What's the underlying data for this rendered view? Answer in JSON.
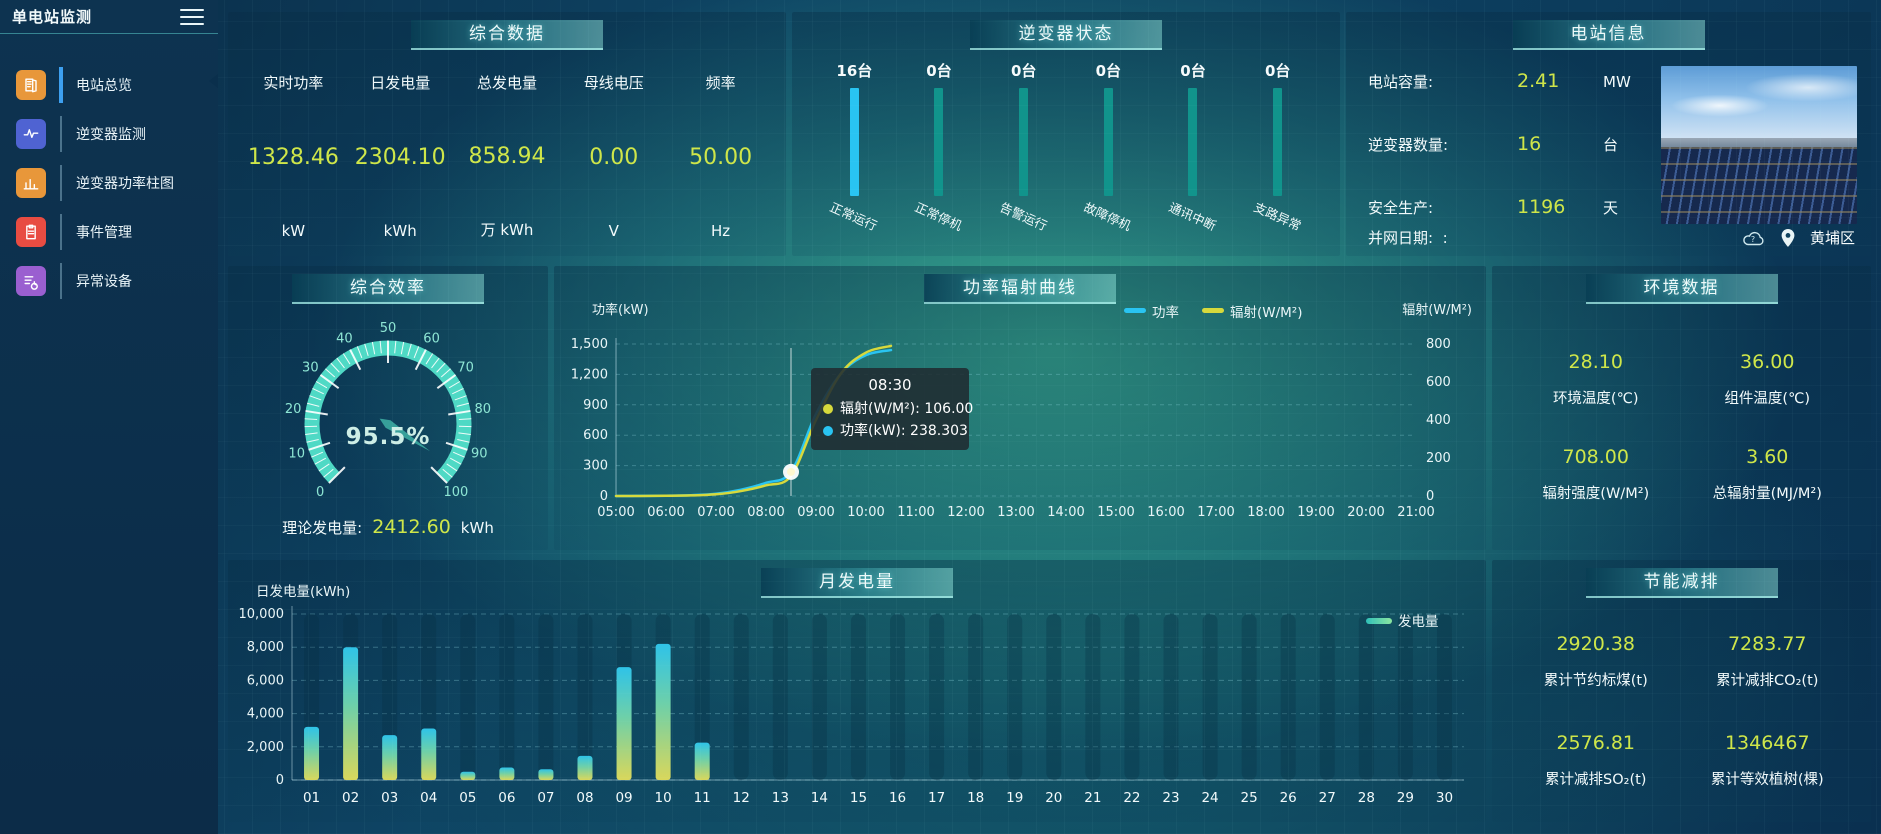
{
  "app": {
    "title": "单电站监测"
  },
  "colors": {
    "accent_cyan": "#29c4f2",
    "bar_teal": "#11948c",
    "value_yellow": "#cfe649",
    "gauge_teal": "#4fd9c5",
    "radiation_yellow": "#d6d93c",
    "active_rail_blue": "#3da0f0"
  },
  "sidebar": {
    "items": [
      {
        "label": "电站总览",
        "icon": "station-overview-icon",
        "color": "#e8973a",
        "active": true
      },
      {
        "label": "逆变器监测",
        "icon": "inverter-monitor-icon",
        "color": "#4f63d2",
        "active": false
      },
      {
        "label": "逆变器功率柱图",
        "icon": "inverter-power-bars-icon",
        "color": "#e8973a",
        "active": false
      },
      {
        "label": "事件管理",
        "icon": "event-management-icon",
        "color": "#e84c42",
        "active": false
      },
      {
        "label": "异常设备",
        "icon": "abnormal-device-icon",
        "color": "#9a5fd0",
        "active": false
      }
    ]
  },
  "summary": {
    "title": "综合数据",
    "metrics": [
      {
        "label": "实时功率",
        "value": "1328.46",
        "unit": "kW"
      },
      {
        "label": "日发电量",
        "value": "2304.10",
        "unit": "kWh"
      },
      {
        "label": "总发电量",
        "value": "858.94",
        "unit": "万 kWh"
      },
      {
        "label": "母线电压",
        "value": "0.00",
        "unit": "V"
      },
      {
        "label": "频率",
        "value": "50.00",
        "unit": "Hz"
      }
    ]
  },
  "inverter_status": {
    "title": "逆变器状态",
    "bars": [
      {
        "count": "16台",
        "label": "正常运行",
        "value": 16
      },
      {
        "count": "0台",
        "label": "正常停机",
        "value": 0
      },
      {
        "count": "0台",
        "label": "告警运行",
        "value": 0
      },
      {
        "count": "0台",
        "label": "故障停机",
        "value": 0
      },
      {
        "count": "0台",
        "label": "通讯中断",
        "value": 0
      },
      {
        "count": "0台",
        "label": "支路异常",
        "value": 0
      }
    ]
  },
  "station_info": {
    "title": "电站信息",
    "rows": [
      {
        "label": "电站容量:",
        "value": "2.41",
        "unit": "MW"
      },
      {
        "label": "逆变器数量:",
        "value": "16",
        "unit": "台"
      },
      {
        "label": "安全生产:",
        "value": "1196",
        "unit": "天"
      }
    ],
    "grid_date_label": "并网日期:",
    "grid_date_value": ":",
    "location": "黄埔区"
  },
  "efficiency": {
    "title": "综合效率",
    "value_text": "95.5%",
    "theory_label": "理论发电量:",
    "theory_value": "2412.60",
    "theory_unit": "kWh"
  },
  "power_curve": {
    "title": "功率辐射曲线",
    "tooltip": {
      "time": "08:30",
      "rows": [
        {
          "dot": "#d6d93c",
          "text": "辐射(W/M²): 106.00"
        },
        {
          "dot": "#29c4f2",
          "text": "功率(kW): 238.303"
        }
      ]
    }
  },
  "environment": {
    "title": "环境数据",
    "items": [
      {
        "value": "28.10",
        "label": "环境温度(℃)"
      },
      {
        "value": "36.00",
        "label": "组件温度(℃)"
      },
      {
        "value": "708.00",
        "label": "辐射强度(W/M²)"
      },
      {
        "value": "3.60",
        "label": "总辐射量(MJ/M²)"
      }
    ]
  },
  "monthly": {
    "title": "月发电量"
  },
  "energy_saving": {
    "title": "节能减排",
    "items": [
      {
        "value": "2920.38",
        "label": "累计节约标煤(t)"
      },
      {
        "value": "7283.77",
        "label": "累计减排CO₂(t)"
      },
      {
        "value": "2576.81",
        "label": "累计减排SO₂(t)"
      },
      {
        "value": "1346467",
        "label": "累计等效植树(棵)"
      }
    ]
  },
  "chart_data": [
    {
      "type": "bar",
      "title": "逆变器状态",
      "categories": [
        "正常运行",
        "正常停机",
        "告警运行",
        "故障停机",
        "通讯中断",
        "支路异常"
      ],
      "values": [
        16,
        0,
        0,
        0,
        0,
        0
      ],
      "unit": "台",
      "active_color": "#29c4f2",
      "zero_color": "#11948c"
    },
    {
      "type": "gauge",
      "title": "综合效率",
      "value": 95.5,
      "min": 0,
      "max": 100,
      "tick_step": 10,
      "unit": "%"
    },
    {
      "type": "line",
      "title": "功率辐射曲线",
      "xticks": [
        "05:00",
        "06:00",
        "07:00",
        "08:00",
        "09:00",
        "10:00",
        "11:00",
        "12:00",
        "13:00",
        "14:00",
        "15:00",
        "16:00",
        "17:00",
        "18:00",
        "19:00",
        "20:00",
        "21:00"
      ],
      "xrange": [
        5,
        21
      ],
      "ylabel_left": "功率(kW)",
      "ylabel_right": "辐射(W/M²)",
      "ylim_left": [
        0,
        1500
      ],
      "yticks_left": [
        0,
        300,
        600,
        900,
        1200,
        1500
      ],
      "ylim_right": [
        0,
        800
      ],
      "yticks_right": [
        0,
        200,
        400,
        600,
        800
      ],
      "legend": [
        {
          "name": "功率",
          "color": "#29c4f2"
        },
        {
          "name": "辐射(W/M²)",
          "color": "#d6d93c"
        }
      ],
      "series": [
        {
          "name": "功率",
          "axis": "left",
          "color": "#29c4f2",
          "points": [
            [
              5,
              0
            ],
            [
              5.5,
              1
            ],
            [
              6,
              3
            ],
            [
              6.5,
              8
            ],
            [
              7,
              22
            ],
            [
              7.5,
              62
            ],
            [
              8,
              130
            ],
            [
              8.5,
              238.3
            ],
            [
              9,
              810
            ],
            [
              9.5,
              1210
            ],
            [
              10,
              1390
            ],
            [
              10.5,
              1440
            ]
          ]
        },
        {
          "name": "辐射(W/M²)",
          "axis": "right",
          "color": "#d6d93c",
          "points": [
            [
              5,
              0
            ],
            [
              5.5,
              0
            ],
            [
              6,
              1
            ],
            [
              6.5,
              3
            ],
            [
              7,
              9
            ],
            [
              7.5,
              26
            ],
            [
              8,
              56
            ],
            [
              8.5,
              106
            ],
            [
              9,
              400
            ],
            [
              9.5,
              645
            ],
            [
              10,
              755
            ],
            [
              10.5,
              790
            ]
          ]
        }
      ],
      "marker": {
        "x": 8.5,
        "y": 238.3,
        "series": "功率"
      }
    },
    {
      "type": "bar",
      "title": "月发电量",
      "ylabel": "日发电量(kWh)",
      "legend": "发电量",
      "categories": [
        "01",
        "02",
        "03",
        "04",
        "05",
        "06",
        "07",
        "08",
        "09",
        "10",
        "11",
        "12",
        "13",
        "14",
        "15",
        "16",
        "17",
        "18",
        "19",
        "20",
        "21",
        "22",
        "23",
        "24",
        "25",
        "26",
        "27",
        "28",
        "29",
        "30"
      ],
      "values": [
        3200,
        8000,
        2700,
        3100,
        500,
        750,
        650,
        1450,
        6800,
        8200,
        2250,
        0,
        0,
        0,
        0,
        0,
        0,
        0,
        0,
        0,
        0,
        0,
        0,
        0,
        0,
        0,
        0,
        0,
        0,
        0
      ],
      "ylim": [
        0,
        10000
      ],
      "yticks": [
        0,
        2000,
        4000,
        6000,
        8000,
        10000
      ]
    }
  ]
}
